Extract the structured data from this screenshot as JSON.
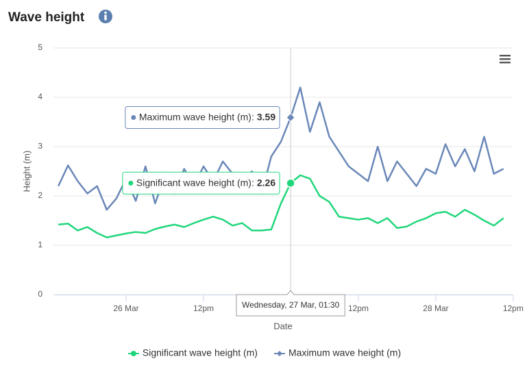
{
  "chart_data": {
    "type": "line",
    "title": "Wave height",
    "x_label": "Date",
    "y_label": "Height (m)",
    "x": [
      -10.5,
      -9,
      -7.5,
      -6,
      -4.5,
      -3,
      -1.5,
      0,
      1.5,
      3,
      4.5,
      6,
      7.5,
      9,
      10.5,
      12,
      13.5,
      15,
      16.5,
      18,
      19.5,
      21,
      22.5,
      24,
      25.5,
      27,
      28.5,
      30,
      31.5,
      33,
      34.5,
      36,
      37.5,
      39,
      40.5,
      42,
      43.5,
      45,
      46.5,
      48,
      49.5,
      51,
      52.5,
      54,
      55.5,
      57,
      58.5
    ],
    "series": [
      {
        "name": "Significant wave height (m)",
        "color": "#20d67b",
        "values": [
          1.42,
          1.44,
          1.3,
          1.37,
          1.25,
          1.16,
          1.2,
          1.24,
          1.27,
          1.25,
          1.33,
          1.38,
          1.42,
          1.37,
          1.45,
          1.52,
          1.58,
          1.52,
          1.4,
          1.45,
          1.3,
          1.3,
          1.32,
          1.85,
          2.26,
          2.42,
          2.35,
          2.0,
          1.88,
          1.58,
          1.55,
          1.52,
          1.55,
          1.45,
          1.55,
          1.35,
          1.38,
          1.48,
          1.55,
          1.65,
          1.68,
          1.58,
          1.72,
          1.62,
          1.5,
          1.4,
          1.55
        ]
      },
      {
        "name": "Maximum wave height (m)",
        "color": "#6a87b8",
        "values": [
          2.2,
          2.62,
          2.3,
          2.05,
          2.2,
          1.72,
          1.95,
          2.35,
          1.9,
          2.6,
          1.85,
          2.4,
          2.05,
          2.55,
          2.2,
          2.6,
          2.3,
          2.7,
          2.45,
          2.2,
          2.5,
          2.05,
          2.8,
          3.1,
          3.59,
          4.2,
          3.3,
          3.9,
          3.2,
          2.9,
          2.6,
          2.45,
          2.3,
          3.0,
          2.3,
          2.7,
          2.45,
          2.2,
          2.55,
          2.45,
          3.05,
          2.6,
          2.95,
          2.5,
          3.2,
          2.45,
          2.55
        ]
      }
    ],
    "xlim": [
      -11.26,
      59.9
    ],
    "xticks": [
      {
        "value": 0,
        "label": "26 Mar"
      },
      {
        "value": 12,
        "label": "12pm"
      },
      {
        "value": 24,
        "label": "27 Mar"
      },
      {
        "value": 36,
        "label": "12pm"
      },
      {
        "value": 48,
        "label": "28 Mar"
      },
      {
        "value": 60,
        "label": "12pm"
      }
    ],
    "ylim": [
      0,
      5
    ],
    "yticks": [
      0,
      1,
      2,
      3,
      4,
      5
    ],
    "grid": true,
    "legend": "bottom",
    "tooltip": {
      "date": "Wednesday, 27 Mar, 01:30",
      "items": [
        {
          "label": "Significant wave height (m):",
          "value": 2.26
        },
        {
          "label": "Maximum wave height (m):",
          "value": 3.59
        }
      ]
    }
  }
}
